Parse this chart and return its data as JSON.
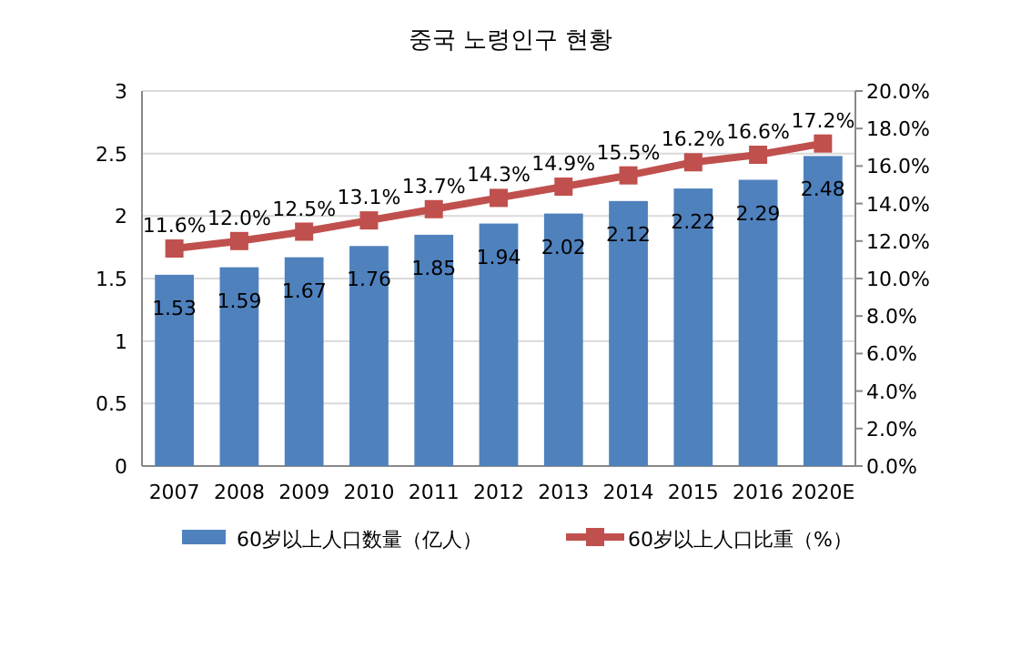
{
  "chart_data": {
    "type": "bar",
    "title": "중국 노령인구 현황",
    "categories": [
      "2007",
      "2008",
      "2009",
      "2010",
      "2011",
      "2012",
      "2013",
      "2014",
      "2015",
      "2016",
      "2020E"
    ],
    "series": [
      {
        "name": "60岁以上人口数量（亿人）",
        "color": "#4f81bd",
        "values": [
          1.53,
          1.59,
          1.67,
          1.76,
          1.85,
          1.94,
          2.02,
          2.12,
          2.22,
          2.29,
          2.48
        ],
        "value_labels": [
          "1.53",
          "1.59",
          "1.67",
          "1.76",
          "1.85",
          "1.94",
          "2.02",
          "2.12",
          "2.22",
          "2.29",
          "2.48"
        ]
      },
      {
        "name": "60岁以上人口比重（%）",
        "type": "line",
        "axis": "y2",
        "color": "#c0504d",
        "marker": "square",
        "values": [
          11.6,
          12.0,
          12.5,
          13.1,
          13.7,
          14.3,
          14.9,
          15.5,
          16.2,
          16.6,
          17.2
        ],
        "value_labels": [
          "11.6%",
          "12.0%",
          "12.5%",
          "13.1%",
          "13.7%",
          "14.3%",
          "14.9%",
          "15.5%",
          "16.2%",
          "16.6%",
          "17.2%"
        ]
      }
    ],
    "ylim": [
      0,
      3
    ],
    "yticks": [
      0,
      0.5,
      1,
      1.5,
      2,
      2.5,
      3
    ],
    "y2lim": [
      0,
      20
    ],
    "y2ticks": [
      {
        "value": 0,
        "label": "0.0%"
      },
      {
        "value": 2,
        "label": "2.0%"
      },
      {
        "value": 4,
        "label": "4.0%"
      },
      {
        "value": 6,
        "label": "6.0%"
      },
      {
        "value": 8,
        "label": "8.0%"
      },
      {
        "value": 10,
        "label": "10.0%"
      },
      {
        "value": 12,
        "label": "12.0%"
      },
      {
        "value": 14,
        "label": "14.0%"
      },
      {
        "value": 16,
        "label": "16.0%"
      },
      {
        "value": 18,
        "label": "18.0%"
      },
      {
        "value": 20,
        "label": "20.0%"
      }
    ],
    "grid": "y",
    "legend": "bottom"
  }
}
